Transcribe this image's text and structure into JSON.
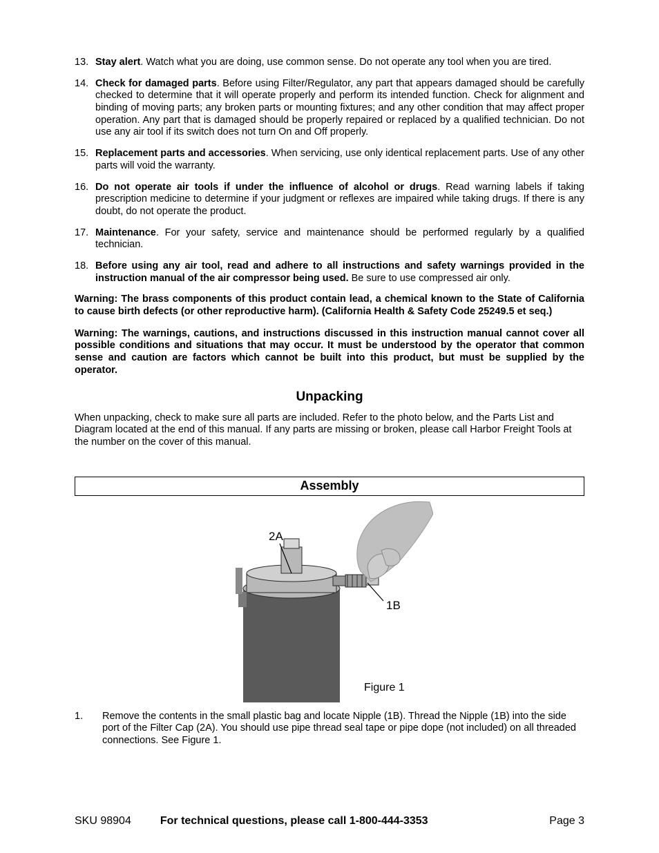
{
  "list": [
    {
      "n": "13.",
      "lead": "Stay alert",
      "text": ".  Watch what you are doing, use common sense. Do not operate any tool when you are tired."
    },
    {
      "n": "14.",
      "lead": "Check for damaged parts",
      "text": ".  Before using Filter/Regulator, any part that appears damaged should be carefully checked to determine that it will operate properly and perform its intended function. Check for alignment and binding of moving parts; any broken parts or mounting fixtures; and any other condition that may affect proper operation. Any part that is damaged should be properly repaired or replaced by a qualified technician. Do not use any air tool if its switch does not turn On and Off properly."
    },
    {
      "n": "15.",
      "lead": "Replacement parts and accessories",
      "text": ".  When servicing, use only identical replacement parts. Use of any other parts will void the warranty."
    },
    {
      "n": "16.",
      "lead": "Do not operate air tools if under the influence of alcohol or drugs",
      "text": ".  Read warning labels if taking prescription medicine to determine if your judgment or reflexes are impaired while taking drugs. If there is any doubt, do not operate the product."
    },
    {
      "n": "17.",
      "lead": "Maintenance",
      "text": ".  For your safety, service and maintenance should be performed regularly by a qualified technician."
    },
    {
      "n": "18.",
      "lead": "Before using any air tool, read and adhere to all instructions and safety warnings provided in the instruction manual of the air compressor being used.",
      "text": "  Be sure to use compressed air only."
    }
  ],
  "warnings": [
    "Warning:  The brass components of this product contain lead, a chemical known to the State of California to cause birth defects (or other reproductive harm). (California Health & Safety Code 25249.5 et seq.)",
    "Warning: The warnings, cautions, and instructions discussed in this instruction manual cannot cover all possible conditions and situations that may occur. It must be understood by the operator that common sense and caution are factors which cannot be built into this product, but must be supplied by the operator."
  ],
  "unpacking": {
    "heading": "Unpacking",
    "text": "When unpacking, check to make sure all parts are included. Refer to the photo below, and the Parts List and Diagram located at the end of this manual. If any parts are missing or broken, please call Harbor Freight Tools at the number on the cover of this manual."
  },
  "assembly": {
    "heading": "Assembly",
    "labels": {
      "a": "2A",
      "b": "1B",
      "caption": "Figure 1"
    },
    "steps": [
      {
        "n": "1.",
        "text": "Remove the contents in the small plastic bag and locate Nipple (1B). Thread the Nipple (1B) into the side port of the Filter Cap (2A). You should use pipe thread seal tape or pipe dope (not included) on all threaded connections. See Figure 1."
      }
    ]
  },
  "footer": {
    "sku": "SKU 98904",
    "mid": "For technical questions, please call 1-800-444-3353",
    "page": "Page 3"
  },
  "figure_style": {
    "body_fill": "#5a5a5a",
    "cap_fill": "#b8b8b8",
    "hand_fill": "#bfbfbf",
    "nipple_fill": "#9a9a9a",
    "outline": "#2a2a2a",
    "label_font": "17",
    "caption_font": "16"
  }
}
